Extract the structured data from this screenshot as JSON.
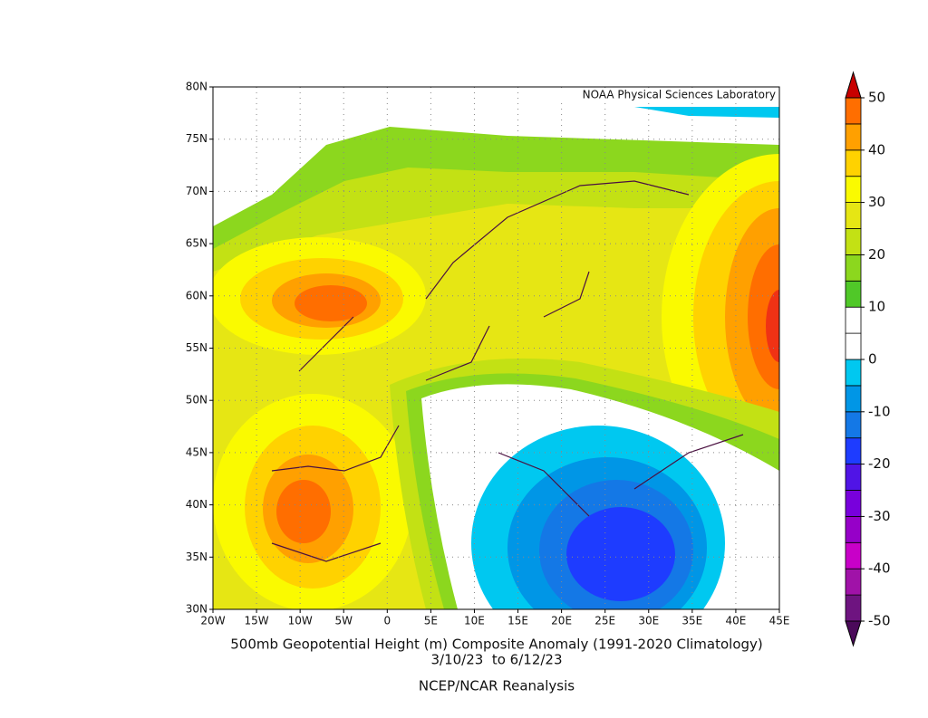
{
  "header": {
    "credit": "NOAA Physical Sciences Laboratory"
  },
  "map": {
    "xlim": [
      -20,
      45
    ],
    "ylim": [
      30,
      80
    ],
    "xticks": [
      {
        "value": -20,
        "label": "20W"
      },
      {
        "value": -15,
        "label": "15W"
      },
      {
        "value": -10,
        "label": "10W"
      },
      {
        "value": -5,
        "label": "5W"
      },
      0,
      {
        "value": 5,
        "label": "5E"
      },
      {
        "value": 10,
        "label": "10E"
      },
      {
        "value": 15,
        "label": "15E"
      },
      {
        "value": 20,
        "label": "20E"
      },
      {
        "value": 25,
        "label": "25E"
      },
      {
        "value": 30,
        "label": "30E"
      },
      {
        "value": 35,
        "label": "35E"
      },
      {
        "value": 40,
        "label": "40E"
      },
      {
        "value": 45,
        "label": "45E"
      }
    ],
    "yticks": [
      {
        "value": 30,
        "label": "30N"
      },
      {
        "value": 35,
        "label": "35N"
      },
      {
        "value": 40,
        "label": "40N"
      },
      {
        "value": 45,
        "label": "45N"
      },
      {
        "value": 50,
        "label": "50N"
      },
      {
        "value": 55,
        "label": "55N"
      },
      {
        "value": 60,
        "label": "60N"
      },
      {
        "value": 65,
        "label": "65N"
      },
      {
        "value": 70,
        "label": "70N"
      },
      {
        "value": 75,
        "label": "75N"
      },
      {
        "value": 80,
        "label": "80N"
      }
    ],
    "grid": true
  },
  "colorbar": {
    "levels": [
      -50,
      -45,
      -40,
      -35,
      -30,
      -25,
      -20,
      -15,
      -10,
      -5,
      0,
      5,
      10,
      15,
      20,
      25,
      30,
      35,
      40,
      45,
      50
    ],
    "colors": [
      "#6e1480",
      "#a012a8",
      "#c800c8",
      "#9600c8",
      "#7800dc",
      "#5014e6",
      "#1e3cff",
      "#1478e6",
      "#0096e6",
      "#00c8f0",
      "#ffffff",
      "#ffffff",
      "#50c828",
      "#8cd71e",
      "#c3e114",
      "#e6e614",
      "#fafa00",
      "#ffd200",
      "#ffa000",
      "#ff6e00",
      "#f03214"
    ],
    "extend_colors": [
      "#4b0a5a",
      "#c80000"
    ],
    "ticks": [
      -50,
      -40,
      -30,
      -20,
      -10,
      0,
      10,
      20,
      30,
      40,
      50
    ]
  },
  "footer": {
    "title": "500mb Geopotential Height (m) Composite Anomaly (1991-2020 Climatology)",
    "period": "3/10/23  to 6/12/23",
    "source": "NCEP/NCAR Reanalysis"
  }
}
